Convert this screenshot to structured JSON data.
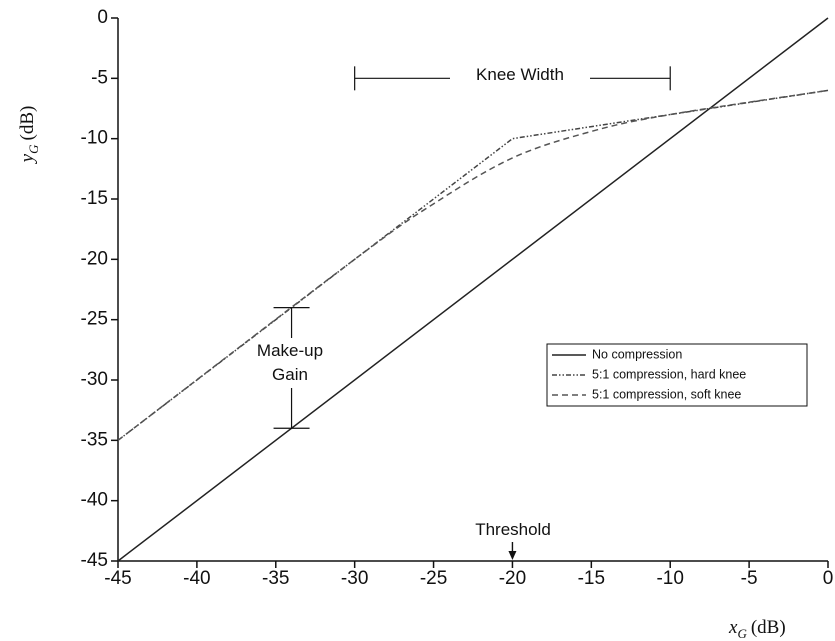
{
  "chart_data": {
    "type": "line",
    "xlabel": {
      "main": "x",
      "sub": "G",
      "unit": "(dB)"
    },
    "ylabel": {
      "main": "y",
      "sub": "G",
      "unit": "(dB)"
    },
    "xlim": [
      -45,
      0
    ],
    "ylim": [
      -45,
      0
    ],
    "xticks": [
      -45,
      -40,
      -35,
      -30,
      -25,
      -20,
      -15,
      -10,
      -5,
      0
    ],
    "yticks": [
      0,
      -5,
      -10,
      -15,
      -20,
      -25,
      -30,
      -35,
      -40,
      -45
    ],
    "grid": false,
    "legend_position": "center-right",
    "series": [
      {
        "name": "No compression",
        "style": "solid",
        "color": "#222222",
        "x": [
          -45,
          0
        ],
        "y": [
          -45,
          0
        ]
      },
      {
        "name": "5:1 compression, hard knee",
        "style": "dashdot",
        "color": "#444444",
        "x": [
          -45,
          -20,
          0
        ],
        "y": [
          -35,
          -10,
          -6
        ]
      },
      {
        "name": "5:1 compression, soft knee",
        "style": "dashed",
        "color": "#555555",
        "x": [
          -45,
          -30,
          -25,
          -20,
          -15,
          -10,
          0
        ],
        "y": [
          -35,
          -20,
          -15.4,
          -11.6,
          -9.4,
          -8,
          -6
        ]
      }
    ],
    "annotations": {
      "knee_width": {
        "label": "Knee Width",
        "x_start": -30,
        "x_end": -10,
        "y": -5
      },
      "makeup_gain": {
        "line1": "Make-up",
        "line2": "Gain",
        "x": -34,
        "y_top": -24,
        "y_bottom": -34
      },
      "threshold": {
        "label": "Threshold",
        "x": -20
      }
    }
  }
}
